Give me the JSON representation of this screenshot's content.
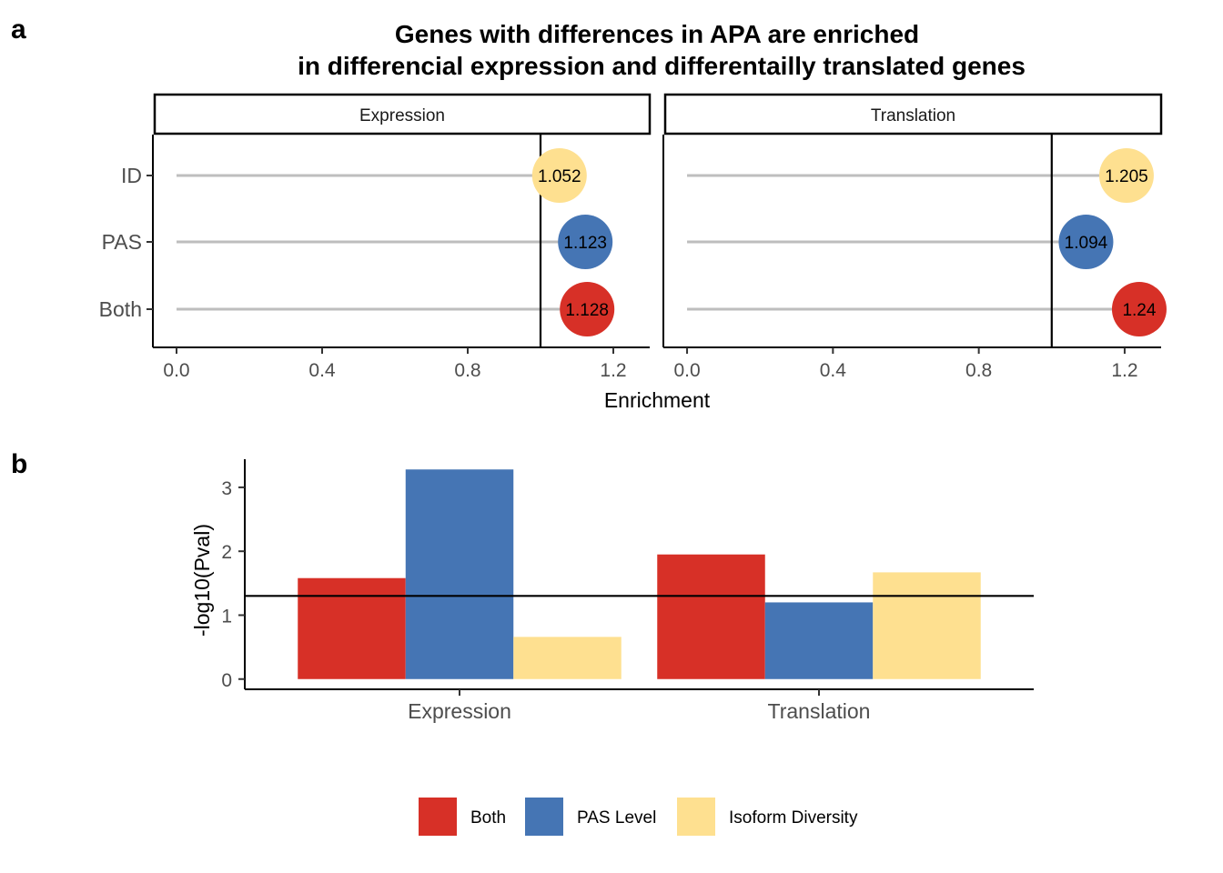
{
  "figure": {
    "panel_labels": [
      "a",
      "b"
    ],
    "title_lines": [
      "Genes with differences in APA are enriched",
      "in differencial expression and differentailly translated genes"
    ]
  },
  "colors": {
    "Both": "#D73027",
    "PAS Level": "#4575B4",
    "Isoform Diversity": "#FEE090",
    "stem": "#BEBEBE",
    "axis": "#000000",
    "tick_text": "#4D4D4D"
  },
  "chart_data": [
    {
      "type": "lollipop",
      "facets": [
        "Expression",
        "Translation"
      ],
      "categories": [
        "ID",
        "PAS",
        "Both"
      ],
      "category_colors": [
        "#FEE090",
        "#4575B4",
        "#D73027"
      ],
      "values": {
        "Expression": [
          1.052,
          1.123,
          1.128
        ],
        "Translation": [
          1.205,
          1.094,
          1.24
        ]
      },
      "labels": {
        "Expression": [
          "1.052",
          "1.123",
          "1.128"
        ],
        "Translation": [
          "1.205",
          "1.094",
          "1.24"
        ]
      },
      "reference_line": 1.0,
      "xlim": [
        -0.06,
        1.3
      ],
      "xticks": [
        0.0,
        0.4,
        0.8,
        1.2
      ],
      "xtick_labels": [
        "0.0",
        "0.4",
        "0.8",
        "1.2"
      ],
      "xlabel": "Enrichment",
      "ylabel": ""
    },
    {
      "type": "bar",
      "categories": [
        "Expression",
        "Translation"
      ],
      "series": [
        {
          "name": "Both",
          "values": [
            1.58,
            1.95
          ]
        },
        {
          "name": "PAS Level",
          "values": [
            3.28,
            1.2
          ]
        },
        {
          "name": "Isoform Diversity",
          "values": [
            0.66,
            1.67
          ]
        }
      ],
      "reference_line": 1.301,
      "ylim": [
        -0.16,
        3.44
      ],
      "yticks": [
        0,
        1,
        2,
        3
      ],
      "ytick_labels": [
        "0",
        "1",
        "2",
        "3"
      ],
      "xlabel": "",
      "ylabel": "-log10(Pval)",
      "legend": {
        "position": "bottom",
        "entries": [
          "Both",
          "PAS Level",
          "Isoform Diversity"
        ]
      }
    }
  ]
}
